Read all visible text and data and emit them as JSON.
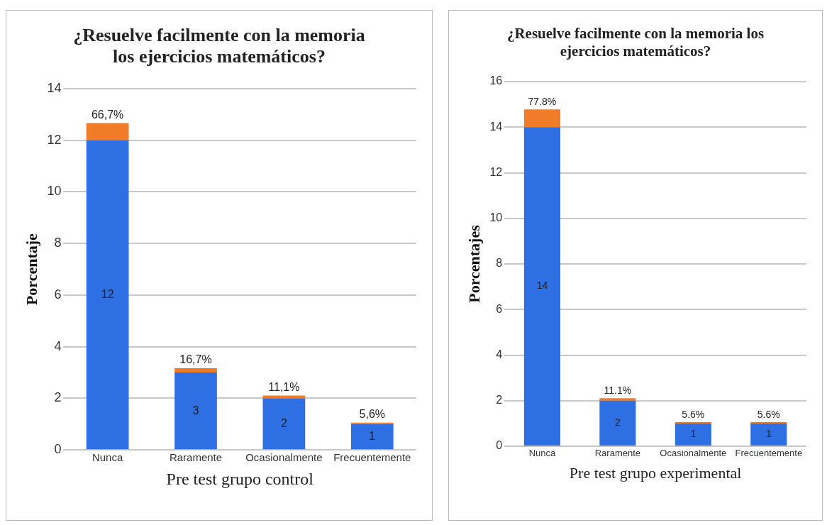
{
  "chart_data": [
    {
      "type": "bar",
      "title": "¿Resuelve facilmente con la memoria los ejercicios matemáticos?",
      "xlabel": "Pre test grupo control",
      "ylabel": "Porcentaje",
      "categories": [
        "Nunca",
        "Raramente",
        "Ocasionalmente",
        "Frecuentemente"
      ],
      "stacked": true,
      "ylim": [
        0,
        14
      ],
      "yticks": [
        0,
        2,
        4,
        6,
        8,
        10,
        12,
        14
      ],
      "grid": "y",
      "legend": false,
      "series": [
        {
          "color": "#2f6fe4",
          "values": [
            12,
            3,
            2,
            1
          ],
          "value_labels": [
            "12",
            "3",
            "2",
            "1"
          ]
        },
        {
          "color": "#f07c2a",
          "values": [
            0.667,
            0.167,
            0.111,
            0.056
          ],
          "value_labels": [
            "66,7%",
            "16,7%",
            "11,1%",
            "5,6%"
          ]
        }
      ]
    },
    {
      "type": "bar",
      "title": "¿Resuelve facilmente con la memoria los ejercicios matemáticos?",
      "xlabel": "Pre test grupo experimental",
      "ylabel": "Porcentajes",
      "categories": [
        "Nunca",
        "Raramente",
        "Ocasionalmente",
        "Frecuentemente"
      ],
      "stacked": true,
      "ylim": [
        0,
        16
      ],
      "yticks": [
        0,
        2,
        4,
        6,
        8,
        10,
        12,
        14,
        16
      ],
      "grid": "y",
      "legend": false,
      "series": [
        {
          "color": "#2f6fe4",
          "values": [
            14,
            2,
            1,
            1
          ],
          "value_labels": [
            "14",
            "2",
            "1",
            "1"
          ]
        },
        {
          "color": "#f07c2a",
          "values": [
            0.778,
            0.111,
            0.056,
            0.056
          ],
          "value_labels": [
            "77.8%",
            "11.1%",
            "5.6%",
            "5.6%"
          ]
        }
      ]
    }
  ]
}
